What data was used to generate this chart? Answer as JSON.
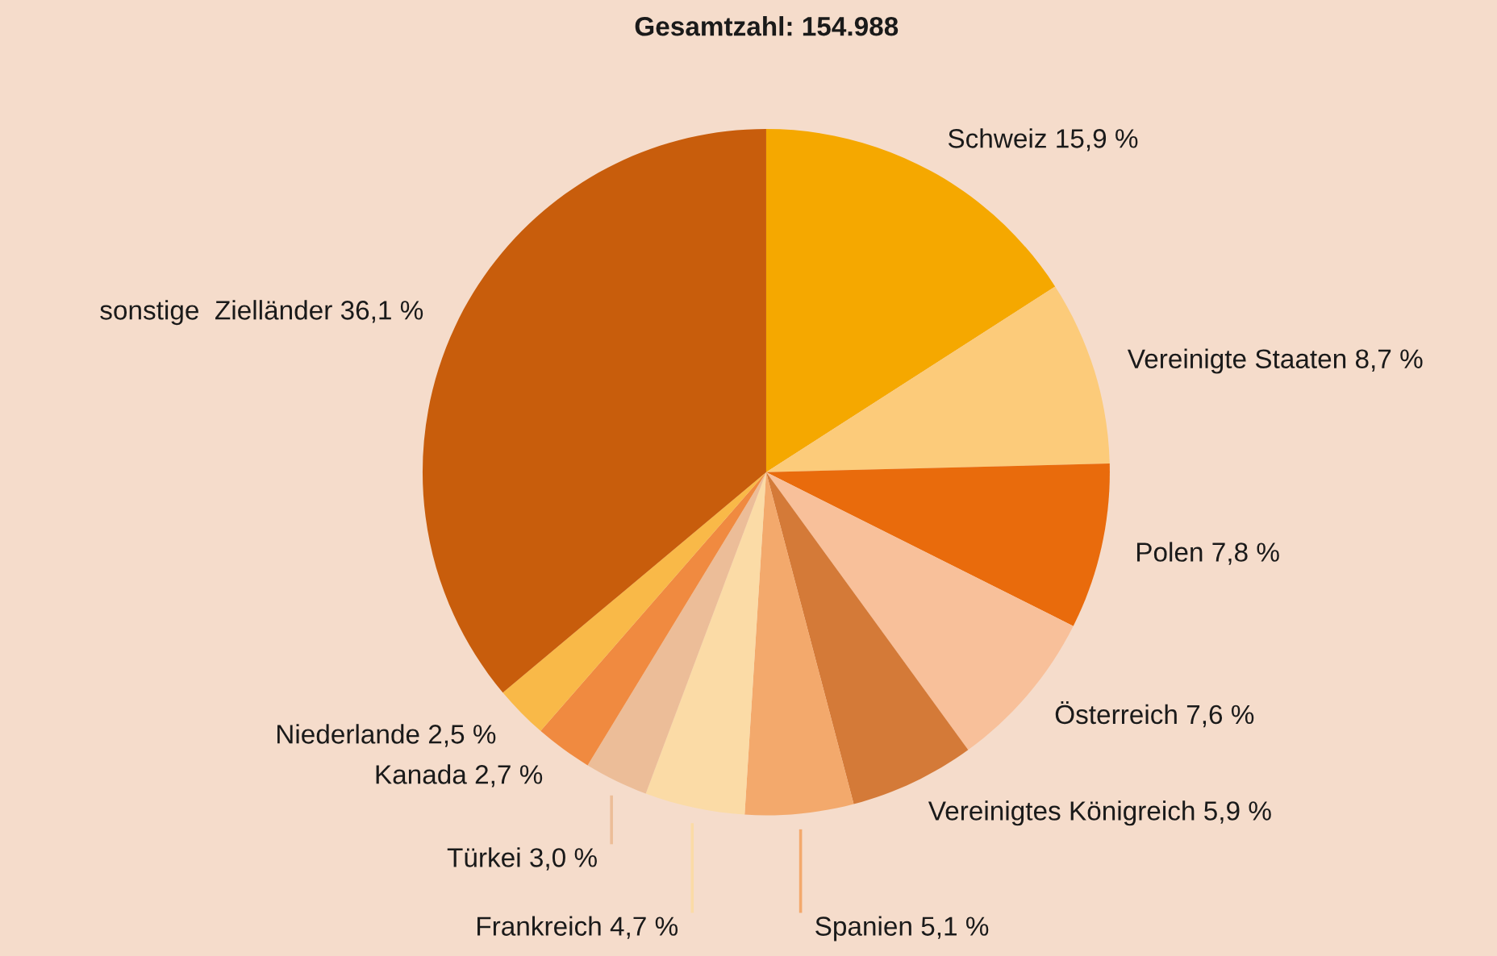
{
  "chart_data": {
    "type": "pie",
    "title": "Gesamtzahl: 154.988",
    "categories": [
      "Schweiz",
      "Vereinigte Staaten",
      "Polen",
      "Österreich",
      "Vereinigtes Königreich",
      "Spanien",
      "Frankreich",
      "Türkei",
      "Kanada",
      "Niederlande",
      "sonstige  Zielländer"
    ],
    "values": [
      15.9,
      8.7,
      7.8,
      7.6,
      5.9,
      5.1,
      4.7,
      3.0,
      2.7,
      2.5,
      36.1
    ],
    "value_labels": [
      "15,9 %",
      "8,7 %",
      "7,8 %",
      "7,6 %",
      "5,9 %",
      "5,1 %",
      "4,7 %",
      "3,0 %",
      "2,7 %",
      "2,5 %",
      "36,1 %"
    ],
    "colors": [
      "#f5a800",
      "#fccb7a",
      "#e96b0c",
      "#f8c09a",
      "#d47a38",
      "#f3a96c",
      "#fbdba6",
      "#ecbd98",
      "#f08a40",
      "#f9b948",
      "#c85d0c"
    ],
    "legend": false
  }
}
